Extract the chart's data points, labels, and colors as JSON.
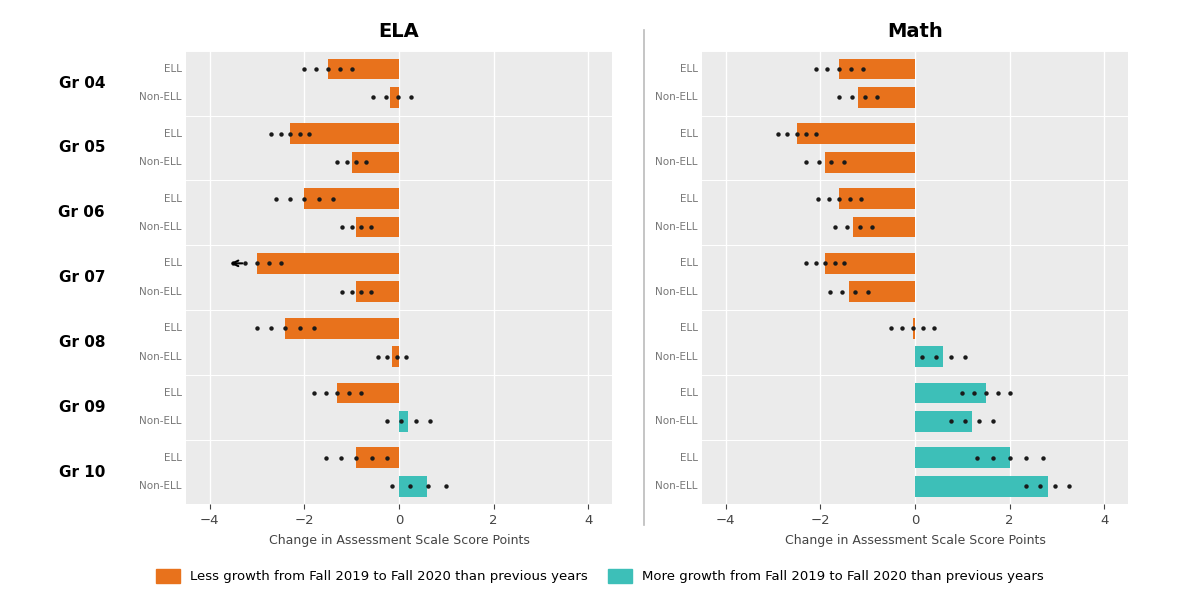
{
  "title_ela": "ELA",
  "title_math": "Math",
  "xlabel": "Change in Assessment Scale Score Points",
  "grades": [
    "Gr 04",
    "Gr 05",
    "Gr 06",
    "Gr 07",
    "Gr 08",
    "Gr 09",
    "Gr 10"
  ],
  "ela": {
    "ELL_bar": [
      -1.5,
      -2.3,
      -2.0,
      -3.0,
      -2.4,
      -1.3,
      -0.9
    ],
    "NonELL_bar": [
      -0.2,
      -1.0,
      -0.9,
      -0.9,
      -0.15,
      0.2,
      0.6
    ],
    "ELL_dot_start": [
      -2.0,
      -2.7,
      -2.6,
      -3.5,
      -3.0,
      -1.8,
      -1.55
    ],
    "ELL_dot_end": [
      -1.0,
      -1.9,
      -1.4,
      -2.5,
      -1.8,
      -0.8,
      -0.25
    ],
    "NonELL_dot_start": [
      -0.55,
      -1.3,
      -1.2,
      -1.2,
      -0.45,
      -0.25,
      -0.15
    ],
    "NonELL_dot_end": [
      0.25,
      -0.7,
      -0.6,
      -0.6,
      0.15,
      0.65,
      1.0
    ],
    "ELL_color": [
      "orange",
      "orange",
      "orange",
      "orange",
      "orange",
      "orange",
      "orange"
    ],
    "NonELL_color": [
      "orange",
      "orange",
      "orange",
      "orange",
      "orange",
      "teal",
      "teal"
    ]
  },
  "math": {
    "ELL_bar": [
      -1.6,
      -2.5,
      -1.6,
      -1.9,
      -0.05,
      1.5,
      2.0
    ],
    "NonELL_bar": [
      -1.2,
      -1.9,
      -1.3,
      -1.4,
      0.6,
      1.2,
      2.8
    ],
    "ELL_dot_start": [
      -2.1,
      -2.9,
      -2.05,
      -2.3,
      -0.5,
      1.0,
      1.3
    ],
    "ELL_dot_end": [
      -1.1,
      -2.1,
      -1.15,
      -1.5,
      0.4,
      2.0,
      2.7
    ],
    "NonELL_dot_start": [
      -1.6,
      -2.3,
      -1.7,
      -1.8,
      0.15,
      0.75,
      2.35
    ],
    "NonELL_dot_end": [
      -0.8,
      -1.5,
      -0.9,
      -1.0,
      1.05,
      1.65,
      3.25
    ],
    "ELL_color": [
      "orange",
      "orange",
      "orange",
      "orange",
      "orange",
      "teal",
      "teal"
    ],
    "NonELL_color": [
      "orange",
      "orange",
      "orange",
      "orange",
      "teal",
      "teal",
      "teal"
    ]
  },
  "orange": "#E8721C",
  "teal": "#3DBFB8",
  "dot_color": "#1a1a1a",
  "plot_bg": "#ebebeb",
  "fig_bg": "#ffffff",
  "xlim": [
    -4.5,
    4.5
  ],
  "xticks": [
    -4,
    -2,
    0,
    2,
    4
  ],
  "legend_orange": "Less growth from Fall 2019 to Fall 2020 than previous years",
  "legend_teal": "More growth from Fall 2019 to Fall 2020 than previous years",
  "bar_height": 0.32,
  "n_ell_dots": 5,
  "n_nonell_dots": 4,
  "arrow_grade_idx": 3
}
